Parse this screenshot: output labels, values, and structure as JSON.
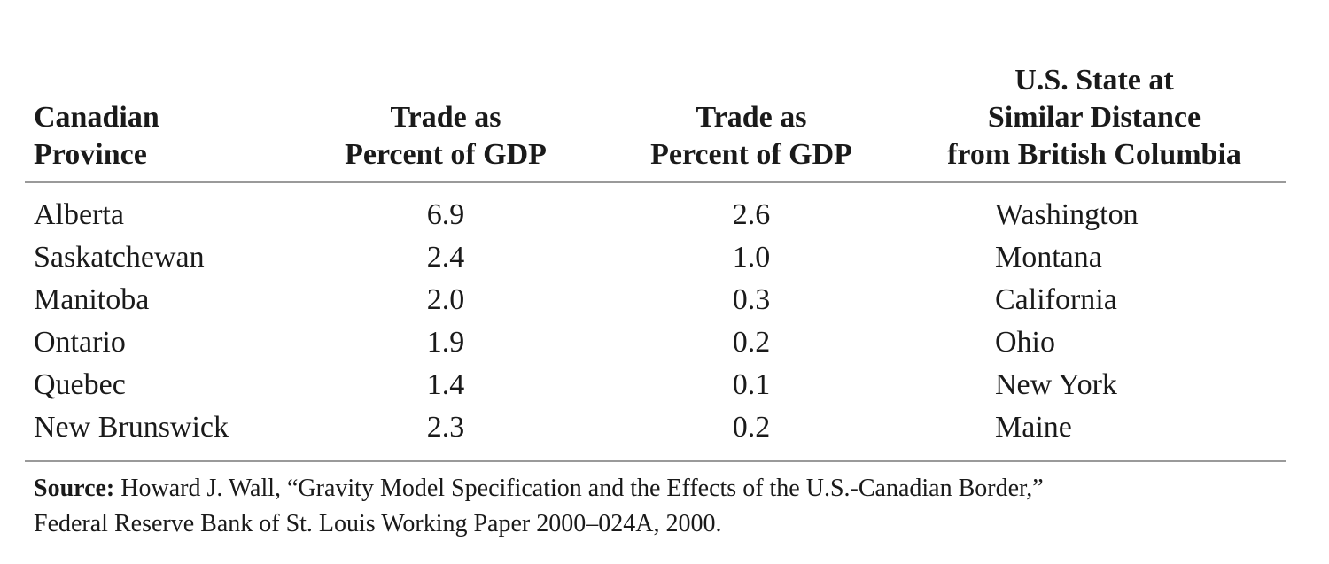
{
  "table": {
    "headers": [
      [
        "Canadian",
        "Province"
      ],
      [
        "Trade as",
        "Percent of GDP"
      ],
      [
        "Trade as",
        "Percent of GDP"
      ],
      [
        "U.S. State at",
        "Similar Distance",
        "from British Columbia"
      ]
    ],
    "rows": [
      {
        "province": "Alberta",
        "trade_ca": "6.9",
        "trade_us": "2.6",
        "state": "Washington"
      },
      {
        "province": "Saskatchewan",
        "trade_ca": "2.4",
        "trade_us": "1.0",
        "state": "Montana"
      },
      {
        "province": "Manitoba",
        "trade_ca": "2.0",
        "trade_us": "0.3",
        "state": "California"
      },
      {
        "province": "Ontario",
        "trade_ca": "1.9",
        "trade_us": "0.2",
        "state": "Ohio"
      },
      {
        "province": "Quebec",
        "trade_ca": "1.4",
        "trade_us": "0.1",
        "state": "New York"
      },
      {
        "province": "New Brunswick",
        "trade_ca": "2.3",
        "trade_us": "0.2",
        "state": "Maine"
      }
    ]
  },
  "source": {
    "label": "Source:",
    "line1": " Howard J. Wall, “Gravity Model Specification and the Effects of the U.S.-Canadian Border,”",
    "line2": "Federal Reserve Bank of St. Louis Working Paper 2000–024A, 2000."
  }
}
